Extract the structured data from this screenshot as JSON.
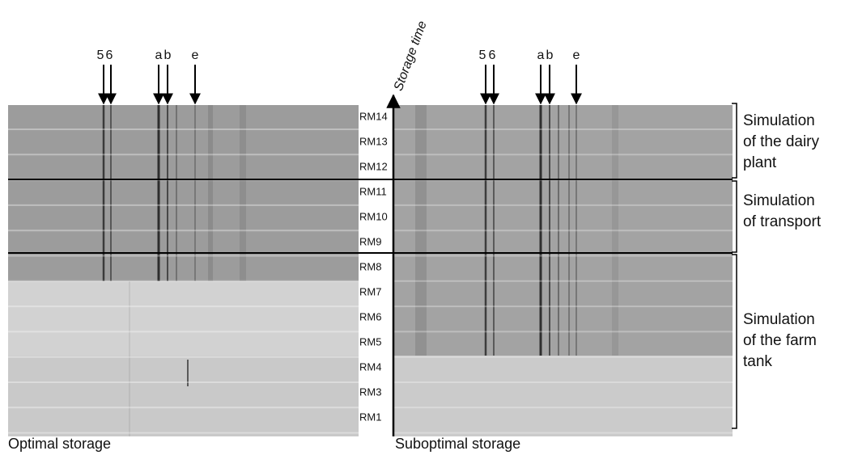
{
  "arrows": {
    "left": [
      "5",
      "6",
      "a",
      "b",
      "e"
    ],
    "right": [
      "5",
      "6",
      "a",
      "b",
      "e"
    ]
  },
  "axis_label": "Storage time",
  "lanes": [
    "RM14",
    "RM13",
    "RM12",
    "RM11",
    "RM10",
    "RM9",
    "RM8",
    "RM7",
    "RM6",
    "RM5",
    "RM4",
    "RM3",
    "RM1"
  ],
  "groups": [
    [
      "Simulation",
      "of the dairy",
      "plant"
    ],
    [
      "Simulation",
      "of transport"
    ],
    [
      "Simulation",
      "of the farm",
      "tank"
    ]
  ],
  "captions": {
    "left": "Optimal storage",
    "right": "Suboptimal storage"
  }
}
